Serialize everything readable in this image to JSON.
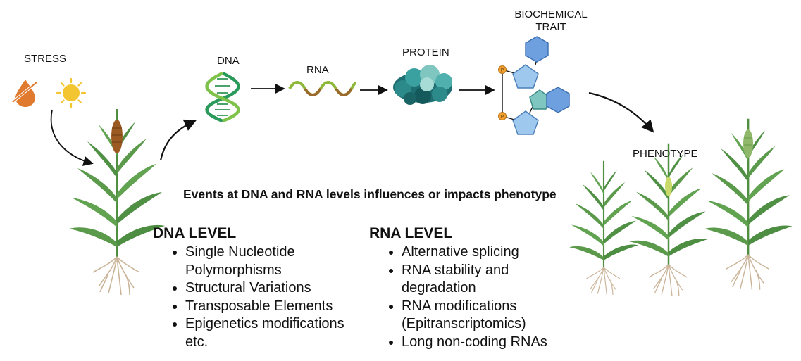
{
  "labels": {
    "stress": "STRESS",
    "dna": "DNA",
    "rna": "RNA",
    "protein": "PROTEIN",
    "biochemical_trait": "BIOCHEMICAL\nTRAIT",
    "phenotype": "PHENOTYPE"
  },
  "headline": "Events at DNA and RNA levels influences or impacts phenotype",
  "phosphate_label": "P",
  "dna_level": {
    "title": "DNA LEVEL",
    "items": [
      "Single Nucleotide Polymorphisms",
      "Structural Variations",
      "Transposable Elements",
      "Epigenetics modifications etc."
    ]
  },
  "rna_level": {
    "title": "RNA LEVEL",
    "items": [
      "Alternative splicing",
      "RNA stability and degradation",
      "RNA modifications (Epitranscriptomics)",
      "Long non-coding RNAs"
    ]
  },
  "colors": {
    "leaf_green": "#5a9a4a",
    "dark_leaf": "#3e7f3a",
    "panicle_brown": "#9a5a22",
    "root_tan": "#cbb59a",
    "sun": "#f2c531",
    "water_drop": "#e07a2e",
    "protein_teal": "#2d8a8a",
    "pentagon_blue": "#9ec8ee",
    "hexagon_blue": "#6e9fdf",
    "phosphate_orange": "#f0a030"
  }
}
